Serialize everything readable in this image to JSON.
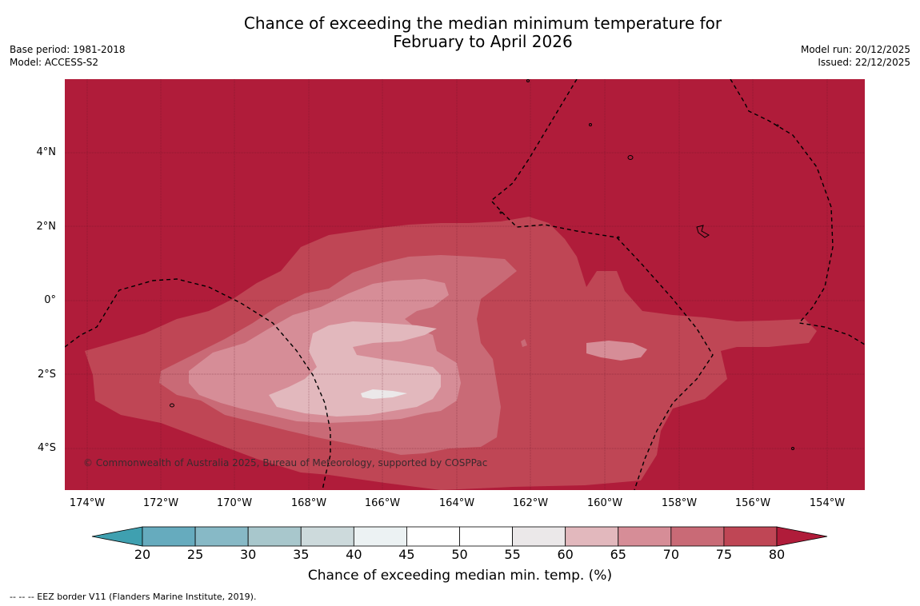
{
  "title_line1": "Chance of exceeding the median minimum temperature for",
  "title_line2": "February to April 2026",
  "base_period": "Base period: 1981-2018",
  "model": "Model: ACCESS-S2",
  "model_run": "Model run: 20/12/2025",
  "issued": "Issued: 22/12/2025",
  "copyright": "© Commonwealth of Australia 2025, Bureau of Meteorology, supported by COSPPac",
  "lat_labels": [
    "4°N",
    "2°N",
    "0°",
    "2°S",
    "4°S"
  ],
  "lon_labels": [
    "174°W",
    "172°W",
    "170°W",
    "168°W",
    "166°W",
    "164°W",
    "162°W",
    "160°W",
    "158°W",
    "156°W",
    "154°W"
  ],
  "colorbar": {
    "ticks": [
      "20",
      "25",
      "30",
      "35",
      "40",
      "45",
      "50",
      "55",
      "60",
      "65",
      "70",
      "75",
      "80"
    ],
    "colors": [
      "#3fa0b0",
      "#66abbe",
      "#87b9c6",
      "#a8c7cc",
      "#cddadc",
      "#ecf2f3",
      "#ffffff",
      "#ffffff",
      "#ebe8e9",
      "#e2b8bd",
      "#d68d97",
      "#c96a76",
      "#bf4655",
      "#b01c3a"
    ],
    "label": "Chance of exceeding median min. temp. (%)"
  },
  "legend_note": "--  --  -- EEZ border V11 (Flanders Marine Institute, 2019)."
}
